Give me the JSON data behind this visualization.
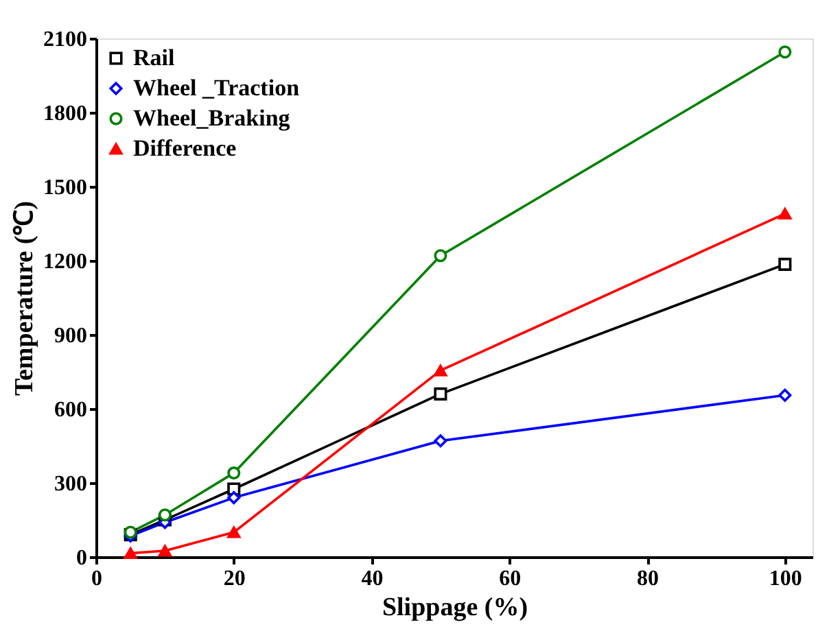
{
  "chart_data": {
    "type": "line",
    "xlabel": "Slippage (%)",
    "ylabel": "Temperature (℃)",
    "x": [
      5,
      10,
      20,
      50,
      100
    ],
    "xlim": [
      0,
      104
    ],
    "xticks": [
      0,
      20,
      40,
      60,
      80,
      100
    ],
    "ylim": [
      0,
      2100
    ],
    "yticks": [
      0,
      300,
      600,
      900,
      1200,
      1500,
      1800,
      2100
    ],
    "grid": false,
    "legend": "top left",
    "series": [
      {
        "name": "Rail",
        "color": "#000000",
        "marker": "square",
        "values": [
          90,
          150,
          275,
          660,
          1185
        ]
      },
      {
        "name": "Wheel _Traction",
        "color": "#0000ff",
        "marker": "diamond",
        "values": [
          85,
          140,
          240,
          470,
          655
        ]
      },
      {
        "name": "Wheel_Braking",
        "color": "#008000",
        "marker": "circle",
        "values": [
          100,
          170,
          340,
          1220,
          2045
        ]
      },
      {
        "name": "Difference",
        "color": "#ff0000",
        "marker": "triangle",
        "values": [
          15,
          25,
          100,
          755,
          1390
        ]
      }
    ]
  }
}
